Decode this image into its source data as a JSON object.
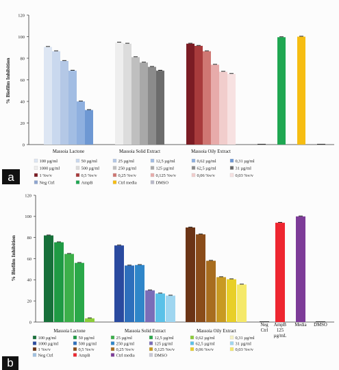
{
  "chart_data": [
    {
      "type": "bar",
      "panel_label": "a",
      "ylabel": "% Biofilm Inhibition",
      "ylim": [
        0,
        120
      ],
      "yticks": [
        0,
        20,
        40,
        60,
        80,
        100,
        120
      ],
      "grid": false,
      "legend_position": "bottom",
      "groups": [
        {
          "label": "Massoia Lactone",
          "bars": [
            {
              "series": "100 µg/ml",
              "value": 90.5
            },
            {
              "series": "50 µg/ml",
              "value": 86.5
            },
            {
              "series": "25 µg/ml",
              "value": 77.5
            },
            {
              "series": "12,5 µg/ml",
              "value": 68.5
            },
            {
              "series": "0,62 µg/ml",
              "value": 40
            },
            {
              "series": "0,31 µg/ml",
              "value": 32
            }
          ]
        },
        {
          "label": "Massoia Solid Extract",
          "bars": [
            {
              "series": "1000 µg/ml",
              "value": 94.5
            },
            {
              "series": "500 µg/ml",
              "value": 93.5
            },
            {
              "series": "250 µg/ml",
              "value": 81
            },
            {
              "series": "125 µg/ml",
              "value": 76
            },
            {
              "series": "62,5 µg/ml",
              "value": 72
            },
            {
              "series": "31 µg/ml",
              "value": 68.5
            }
          ]
        },
        {
          "label": "Massoia Oily Extract",
          "bars": [
            {
              "series": "1 %v/v",
              "value": 93.5
            },
            {
              "series": "0,5 %v/v",
              "value": 91.5
            },
            {
              "series": "0,25 %v/v",
              "value": 86.5
            },
            {
              "series": "0,125 %v/v",
              "value": 74
            },
            {
              "series": "0,06 %v/v",
              "value": 67.5
            },
            {
              "series": "0,03 %v/v",
              "value": 65.5
            }
          ]
        },
        {
          "label": "",
          "bars": [
            {
              "series": "Neg Ctrl",
              "value": 0
            },
            {
              "series": "AmpB",
              "value": 99.5
            },
            {
              "series": "Ctrl media",
              "value": 100
            },
            {
              "series": "DMSO",
              "value": 0
            }
          ]
        }
      ],
      "legend": [
        {
          "label": "100 µg/ml",
          "color": "#dde6f3"
        },
        {
          "label": "50 µg/ml",
          "color": "#c9d8ee"
        },
        {
          "label": "25 µg/ml",
          "color": "#b4c8e6"
        },
        {
          "label": "12,5 µg/ml",
          "color": "#a2bde3"
        },
        {
          "label": "0,62 µg/ml",
          "color": "#8fb0df"
        },
        {
          "label": "0,31 µg/ml",
          "color": "#6e98d3"
        },
        {
          "label": "1000 µg/ml",
          "color": "#eeeeee"
        },
        {
          "label": "500 µg/ml",
          "color": "#dcdcdc"
        },
        {
          "label": "250 µg/ml",
          "color": "#bfbfbf"
        },
        {
          "label": "125 µg/ml",
          "color": "#a8a8a8"
        },
        {
          "label": "62,5 µg/ml",
          "color": "#8b8b8b"
        },
        {
          "label": "31 µg/ml",
          "color": "#6c6c6c"
        },
        {
          "label": "1 %v/v",
          "color": "#7b1c24"
        },
        {
          "label": "0,5 %v/v",
          "color": "#a83b3c"
        },
        {
          "label": "0,25 %v/v",
          "color": "#cf7773"
        },
        {
          "label": "0,125 %v/v",
          "color": "#e7abaa"
        },
        {
          "label": "0,06 %v/v",
          "color": "#f1cdcc"
        },
        {
          "label": "0,03 %v/v",
          "color": "#f7e1e1"
        },
        {
          "label": "Neg Ctrl",
          "color": "#8ea5cf"
        },
        {
          "label": "AmpB",
          "color": "#1fa752"
        },
        {
          "label": "Ctrl media",
          "color": "#f6bd12"
        },
        {
          "label": "DMSO",
          "color": "#b9b9c9"
        }
      ]
    },
    {
      "type": "bar",
      "panel_label": "b",
      "ylabel": "% Biofilm Inhibition",
      "ylim": [
        0,
        120
      ],
      "yticks": [
        0,
        20,
        40,
        60,
        80,
        100,
        120
      ],
      "grid": false,
      "legend_position": "bottom",
      "groups": [
        {
          "label": "Massoia Lactone",
          "bars": [
            {
              "series": "100 µg/ml",
              "value": 82
            },
            {
              "series": "50 µg/ml",
              "value": 75.5
            },
            {
              "series": "25 µg/ml",
              "value": 64.5
            },
            {
              "series": "12,5 µg/ml",
              "value": 56
            },
            {
              "series": "0,62 µg/ml",
              "value": 3.5
            }
          ]
        },
        {
          "label": "Massoia Solid Extract",
          "bars": [
            {
              "series": "1000 µg/ml",
              "value": 72.5
            },
            {
              "series": "500 µg/ml",
              "value": 53.5
            },
            {
              "series": "250 µg/ml",
              "value": 54
            },
            {
              "series": "125 µg/ml",
              "value": 30
            },
            {
              "series": "62,5 µg/ml",
              "value": 27
            },
            {
              "series": "31 µg/ml",
              "value": 25
            }
          ]
        },
        {
          "label": "Massoia Oily Extract",
          "bars": [
            {
              "series": "1 %v/v",
              "value": 89.5
            },
            {
              "series": "0,5 %v/v",
              "value": 83
            },
            {
              "series": "0,25 %v/v",
              "value": 58
            },
            {
              "series": "0,125 %v/v",
              "value": 42.5
            },
            {
              "series": "0,06 %v/v",
              "value": 40.5
            },
            {
              "series": "0,03 %v/v",
              "value": 35.5
            }
          ]
        },
        {
          "label": "Neg Ctrl",
          "bars": [
            {
              "series": "Neg Ctrl",
              "value": 0
            }
          ]
        },
        {
          "label": "AmpB 125 µg/mL",
          "bars": [
            {
              "series": "AmpB",
              "value": 94
            }
          ]
        },
        {
          "label": "Media",
          "bars": [
            {
              "series": "Ctrl media",
              "value": 100
            }
          ]
        },
        {
          "label": "DMSO",
          "bars": [
            {
              "series": "DMSO",
              "value": 0
            }
          ]
        }
      ],
      "legend": [
        {
          "label": "100 µg/ml",
          "color": "#17703a"
        },
        {
          "label": "50 µg/ml",
          "color": "#1f9a44"
        },
        {
          "label": "25 µg/ml",
          "color": "#3caf4a"
        },
        {
          "label": "12,5 µg/ml",
          "color": "#2aa849"
        },
        {
          "label": "0,62 µg/ml",
          "color": "#8ccd3a"
        },
        {
          "label": "0,31 µg/ml",
          "color": "#f5f1c2"
        },
        {
          "label": "1000 µg/ml",
          "color": "#2a4a9f"
        },
        {
          "label": "500 µg/ml",
          "color": "#2e6fbc"
        },
        {
          "label": "250 µg/ml",
          "color": "#2f86c9"
        },
        {
          "label": "125 µg/ml",
          "color": "#7a6db8"
        },
        {
          "label": "62,5 µg/ml",
          "color": "#5bc1e8"
        },
        {
          "label": "31 µg/ml",
          "color": "#9fd6f0"
        },
        {
          "label": "1 %v/v",
          "color": "#6b3416"
        },
        {
          "label": "0,5 %v/v",
          "color": "#8a4c1a"
        },
        {
          "label": "0,25 %v/v",
          "color": "#a86d1f"
        },
        {
          "label": "0,125 %v/v",
          "color": "#c89a22"
        },
        {
          "label": "0,06 %v/v",
          "color": "#e8cf28"
        },
        {
          "label": "0,03 %v/v",
          "color": "#f5e96a"
        },
        {
          "label": "Neg Ctrl",
          "color": "#9fc0e0"
        },
        {
          "label": "AmpB",
          "color": "#ee2630"
        },
        {
          "label": "Ctrl media",
          "color": "#7d3c98"
        },
        {
          "label": "DMSO",
          "color": "#c8c8d4"
        }
      ]
    }
  ]
}
